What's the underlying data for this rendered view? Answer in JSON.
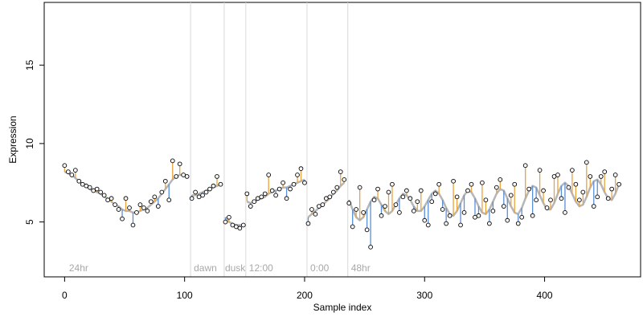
{
  "chart_data": {
    "type": "scatter",
    "xlabel": "Sample index",
    "ylabel": "Expression",
    "xlim": [
      -17,
      480
    ],
    "ylim": [
      1.5,
      19.0
    ],
    "xticks": [
      0,
      100,
      200,
      300,
      400
    ],
    "yticks": [
      5,
      10,
      15
    ],
    "grid": false,
    "segment_markers": [
      {
        "x": 105,
        "label": ""
      },
      {
        "x": 133,
        "label": ""
      },
      {
        "x": 151,
        "label": ""
      },
      {
        "x": 202,
        "label": ""
      },
      {
        "x": 236,
        "label": ""
      }
    ],
    "segment_labels": [
      {
        "x": 3,
        "label": "24hr"
      },
      {
        "x": 107,
        "label": "dawn"
      },
      {
        "x": 133,
        "label": "dusk"
      },
      {
        "x": 153,
        "label": "12:00"
      },
      {
        "x": 204,
        "label": "0:00"
      },
      {
        "x": 238,
        "label": "48hr"
      }
    ],
    "fitted_color": "#a9a9a9",
    "above_color": "#e8a33d",
    "below_color": "#5a8fd6",
    "series": [
      {
        "segment": 1,
        "x": [
          0,
          3,
          6,
          9,
          12,
          15,
          18,
          21,
          24,
          27,
          30,
          33,
          36,
          39,
          42,
          45,
          48,
          51,
          54,
          57,
          60,
          63,
          66,
          69,
          72,
          75,
          78,
          81,
          84,
          87,
          90,
          93,
          96,
          99,
          102
        ],
        "y": [
          8.6,
          8.2,
          8.0,
          8.3,
          7.6,
          7.4,
          7.3,
          7.2,
          7.0,
          7.1,
          6.9,
          6.7,
          6.4,
          6.5,
          6.1,
          5.8,
          5.2,
          6.5,
          5.9,
          4.8,
          5.6,
          6.1,
          5.9,
          5.7,
          6.3,
          6.6,
          6.0,
          6.9,
          7.6,
          6.4,
          8.9,
          7.9,
          8.7,
          8.0,
          7.9
        ],
        "fitted": [
          8.2,
          8.1,
          8.0,
          7.8,
          7.6,
          7.4,
          7.3,
          7.1,
          7.0,
          6.9,
          6.8,
          6.6,
          6.5,
          6.3,
          6.1,
          6.0,
          5.8,
          5.7,
          5.7,
          5.6,
          5.6,
          5.7,
          5.8,
          5.9,
          6.1,
          6.3,
          6.5,
          6.8,
          7.1,
          7.4,
          7.7,
          7.9,
          8.0,
          8.0,
          7.9
        ]
      },
      {
        "segment": 2,
        "x": [
          106,
          109,
          112,
          115,
          118,
          121,
          124,
          127,
          130
        ],
        "y": [
          6.5,
          6.9,
          6.6,
          6.7,
          6.9,
          7.1,
          7.3,
          7.9,
          7.4
        ],
        "fitted": [
          6.7,
          6.7,
          6.8,
          6.9,
          7.0,
          7.1,
          7.2,
          7.3,
          7.4
        ]
      },
      {
        "segment": 3,
        "x": [
          134,
          137,
          140,
          143,
          146,
          149
        ],
        "y": [
          5.0,
          5.3,
          4.8,
          4.7,
          4.6,
          4.8
        ],
        "fitted": [
          5.3,
          5.0,
          4.9,
          4.8,
          4.8,
          4.8
        ]
      },
      {
        "segment": 4,
        "x": [
          152,
          155,
          158,
          161,
          164,
          167,
          170,
          173,
          176,
          179,
          182,
          185,
          188,
          191,
          194,
          197,
          200
        ],
        "y": [
          6.8,
          6.0,
          6.3,
          6.5,
          6.6,
          6.8,
          8.0,
          7.0,
          6.7,
          7.1,
          7.5,
          6.5,
          7.1,
          7.4,
          8.0,
          8.4,
          7.5
        ],
        "fitted": [
          6.3,
          6.2,
          6.3,
          6.4,
          6.5,
          6.6,
          6.8,
          6.9,
          7.0,
          7.1,
          7.2,
          7.2,
          7.3,
          7.4,
          7.5,
          7.6,
          7.7
        ]
      },
      {
        "segment": 5,
        "x": [
          203,
          206,
          209,
          212,
          215,
          218,
          221,
          224,
          227,
          230,
          233
        ],
        "y": [
          4.9,
          5.8,
          5.5,
          6.0,
          6.1,
          6.5,
          6.6,
          6.9,
          7.2,
          8.2,
          7.7
        ],
        "fitted": [
          5.3,
          5.5,
          5.7,
          5.9,
          6.1,
          6.3,
          6.5,
          6.8,
          7.0,
          7.3,
          7.5
        ]
      },
      {
        "segment": 6,
        "x": [
          237,
          240,
          243,
          246,
          249,
          252,
          255,
          258,
          261,
          264,
          267,
          270,
          273,
          276,
          279,
          282,
          285,
          288,
          291,
          294,
          297,
          300,
          303,
          306,
          309,
          312,
          315,
          318,
          321,
          324,
          327,
          330,
          333,
          336,
          339,
          342,
          345,
          348,
          351,
          354,
          357,
          360,
          363,
          366,
          369,
          372,
          375,
          378,
          381,
          384,
          387,
          390,
          393,
          396,
          399,
          402,
          405,
          408,
          411,
          414,
          417,
          420,
          423,
          426,
          429,
          432,
          435,
          438,
          441,
          444,
          447,
          450,
          453,
          456,
          459,
          462
        ],
        "y": [
          6.2,
          4.7,
          5.8,
          7.2,
          5.6,
          4.5,
          3.4,
          6.4,
          7.1,
          5.4,
          6.0,
          6.9,
          7.4,
          6.1,
          5.6,
          6.6,
          7.0,
          6.5,
          5.7,
          6.3,
          7.0,
          5.1,
          4.8,
          6.3,
          6.8,
          7.4,
          5.8,
          4.9,
          5.4,
          7.6,
          6.6,
          4.8,
          5.6,
          7.0,
          7.4,
          5.3,
          5.4,
          7.5,
          6.4,
          4.9,
          5.7,
          7.2,
          7.7,
          6.0,
          5.1,
          6.7,
          7.4,
          4.9,
          5.3,
          8.6,
          7.1,
          5.4,
          6.4,
          8.3,
          7.0,
          5.9,
          6.4,
          7.9,
          8.0,
          6.5,
          5.6,
          7.2,
          8.3,
          7.4,
          6.4,
          6.9,
          8.8,
          7.9,
          6.0,
          6.6,
          7.9,
          8.2,
          6.5,
          7.1,
          8.0,
          7.4
        ],
        "fitted": [
          6.4,
          5.8,
          5.3,
          5.1,
          5.3,
          5.8,
          6.3,
          6.6,
          6.5,
          6.1,
          5.7,
          5.5,
          5.7,
          6.1,
          6.5,
          6.8,
          6.7,
          6.4,
          6.0,
          5.7,
          5.7,
          6.0,
          6.4,
          6.8,
          7.0,
          6.8,
          6.4,
          5.9,
          5.5,
          5.4,
          5.7,
          6.2,
          6.7,
          7.0,
          6.9,
          6.5,
          6.0,
          5.6,
          5.5,
          5.8,
          6.3,
          6.8,
          7.1,
          7.0,
          6.5,
          6.0,
          5.6,
          5.5,
          5.9,
          6.5,
          7.0,
          7.3,
          7.2,
          6.7,
          6.2,
          5.8,
          5.8,
          6.2,
          6.8,
          7.3,
          7.5,
          7.3,
          6.8,
          6.3,
          6.0,
          6.1,
          6.6,
          7.2,
          7.6,
          7.7,
          7.4,
          6.9,
          6.5,
          6.4,
          6.8,
          7.4
        ]
      }
    ]
  }
}
